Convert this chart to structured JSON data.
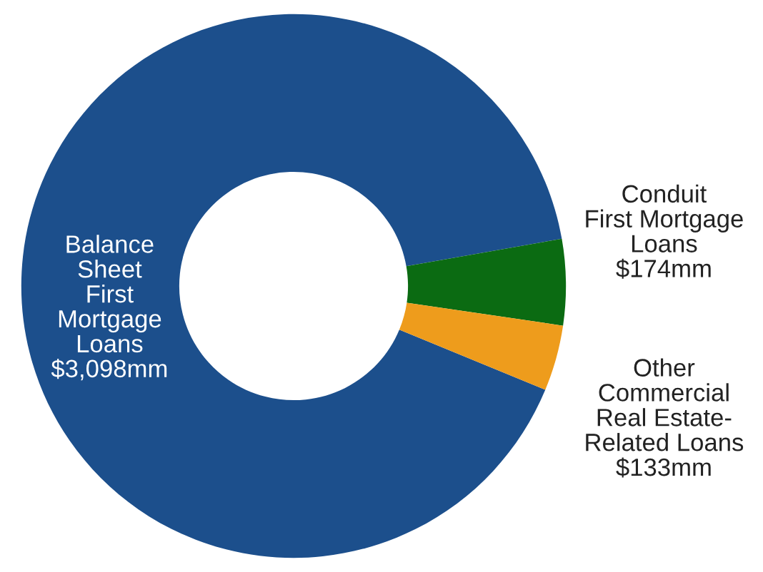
{
  "chart_data": {
    "type": "donut",
    "categories": [
      "Balance\nSheet\nFirst\nMortgage\nLoans",
      "Conduit\nFirst Mortgage\nLoans",
      "Other\nCommercial\nReal Estate-\nRelated Loans"
    ],
    "values": [
      3098,
      174,
      133
    ],
    "value_labels": [
      "$3,098mm",
      "$174mm",
      "$133mm"
    ],
    "colors": [
      "#1c4f8c",
      "#0b6b12",
      "#ee9c1c"
    ],
    "legend": false
  }
}
